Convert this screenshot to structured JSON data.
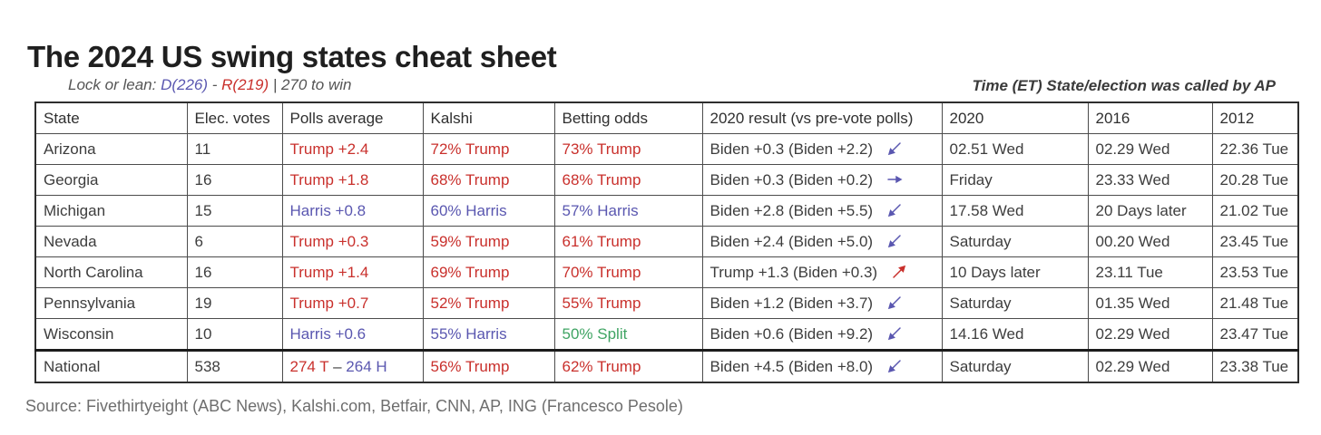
{
  "colors": {
    "red": "#c9302c",
    "blue": "#5a57b0",
    "green": "#3fa463",
    "dark": "#3d3d3d"
  },
  "page": {
    "subtitle": {
      "prefix": "Lock or lean: ",
      "dem": "D(226)",
      "sep": " - ",
      "rep": "R(219)",
      "suffix": " | 270 to win"
    },
    "ap_note": "Time (ET) State/election was called by AP",
    "source": "Source: Fivethirtyeight (ABC News), Kalshi.com, Betfair, CNN, AP, ING (Francesco Pesole)"
  },
  "chart_data": {
    "type": "table",
    "title": "The 2024 US swing states cheat sheet",
    "columns": [
      "State",
      "Elec. votes",
      "Polls average",
      "Kalshi",
      "Betting odds",
      "2020 result (vs pre-vote polls)",
      "2020",
      "2016",
      "2012"
    ],
    "rows": [
      {
        "state": "Arizona",
        "ev": "11",
        "polls": [
          {
            "t": "Trump +2.4",
            "c": "red"
          }
        ],
        "kalshi": [
          {
            "t": "72% Trump",
            "c": "red"
          }
        ],
        "betting": [
          {
            "t": "73% Trump",
            "c": "red"
          }
        ],
        "result": "Biden +0.3 (Biden +2.2)",
        "arrow": {
          "dir": "SW",
          "c": "blue"
        },
        "called2020": "02.51 Wed",
        "called2016": "02.29 Wed",
        "called2012": "22.36 Tue"
      },
      {
        "state": "Georgia",
        "ev": "16",
        "polls": [
          {
            "t": "Trump +1.8",
            "c": "red"
          }
        ],
        "kalshi": [
          {
            "t": "68% Trump",
            "c": "red"
          }
        ],
        "betting": [
          {
            "t": "68% Trump",
            "c": "red"
          }
        ],
        "result": "Biden +0.3 (Biden +0.2)",
        "arrow": {
          "dir": "E",
          "c": "blue"
        },
        "called2020": "Friday",
        "called2016": "23.33 Wed",
        "called2012": "20.28 Tue"
      },
      {
        "state": "Michigan",
        "ev": "15",
        "polls": [
          {
            "t": "Harris +0.8",
            "c": "blue"
          }
        ],
        "kalshi": [
          {
            "t": "60% Harris",
            "c": "blue"
          }
        ],
        "betting": [
          {
            "t": "57% Harris",
            "c": "blue"
          }
        ],
        "result": "Biden +2.8 (Biden +5.5)",
        "arrow": {
          "dir": "SW",
          "c": "blue"
        },
        "called2020": "17.58 Wed",
        "called2016": "20 Days later",
        "called2012": "21.02 Tue"
      },
      {
        "state": "Nevada",
        "ev": "6",
        "polls": [
          {
            "t": "Trump +0.3",
            "c": "red"
          }
        ],
        "kalshi": [
          {
            "t": "59% Trump",
            "c": "red"
          }
        ],
        "betting": [
          {
            "t": "61% Trump",
            "c": "red"
          }
        ],
        "result": "Biden +2.4 (Biden +5.0)",
        "arrow": {
          "dir": "SW",
          "c": "blue"
        },
        "called2020": "Saturday",
        "called2016": "00.20 Wed",
        "called2012": "23.45 Tue"
      },
      {
        "state": "North Carolina",
        "ev": "16",
        "polls": [
          {
            "t": "Trump +1.4",
            "c": "red"
          }
        ],
        "kalshi": [
          {
            "t": "69% Trump",
            "c": "red"
          }
        ],
        "betting": [
          {
            "t": "70% Trump",
            "c": "red"
          }
        ],
        "result": "Trump +1.3 (Biden +0.3)",
        "arrow": {
          "dir": "NE",
          "c": "red"
        },
        "called2020": "10 Days later",
        "called2016": "23.11 Tue",
        "called2012": "23.53 Tue"
      },
      {
        "state": "Pennsylvania",
        "ev": "19",
        "polls": [
          {
            "t": "Trump +0.7",
            "c": "red"
          }
        ],
        "kalshi": [
          {
            "t": "52% Trump",
            "c": "red"
          }
        ],
        "betting": [
          {
            "t": "55% Trump",
            "c": "red"
          }
        ],
        "result": "Biden +1.2 (Biden +3.7)",
        "arrow": {
          "dir": "SW",
          "c": "blue"
        },
        "called2020": "Saturday",
        "called2016": "01.35 Wed",
        "called2012": "21.48 Tue"
      },
      {
        "state": "Wisconsin",
        "ev": "10",
        "polls": [
          {
            "t": "Harris +0.6",
            "c": "blue"
          }
        ],
        "kalshi": [
          {
            "t": "55% Harris",
            "c": "blue"
          }
        ],
        "betting": [
          {
            "t": "50% Split",
            "c": "green"
          }
        ],
        "result": "Biden +0.6 (Biden +9.2)",
        "arrow": {
          "dir": "SW",
          "c": "blue"
        },
        "called2020": "14.16 Wed",
        "called2016": "02.29 Wed",
        "called2012": "23.47 Tue"
      },
      {
        "state": "National",
        "ev": "538",
        "divider": true,
        "polls": [
          {
            "t": "274 T ",
            "c": "red"
          },
          {
            "t": "– ",
            "c": "dark"
          },
          {
            "t": "264 H",
            "c": "blue"
          }
        ],
        "kalshi": [
          {
            "t": "56% Trump",
            "c": "red"
          }
        ],
        "betting": [
          {
            "t": "62% Trump",
            "c": "red"
          }
        ],
        "result": "Biden +4.5 (Biden +8.0)",
        "arrow": {
          "dir": "SW",
          "c": "blue"
        },
        "called2020": "Saturday",
        "called2016": "02.29 Wed",
        "called2012": "23.38 Tue"
      }
    ]
  }
}
